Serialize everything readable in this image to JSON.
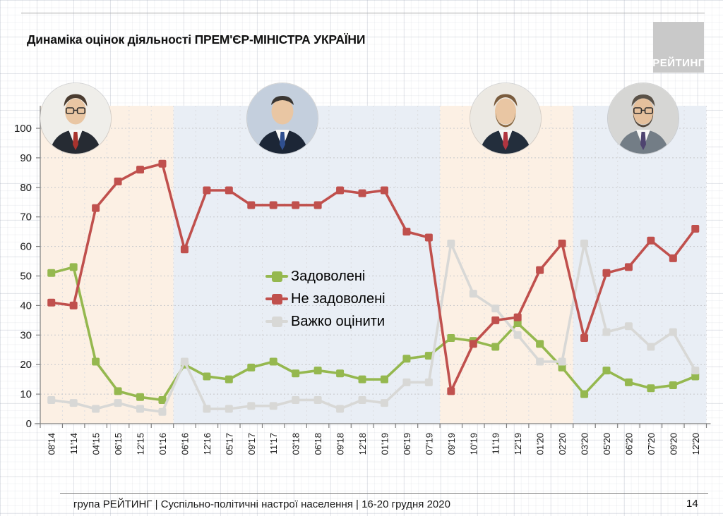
{
  "page": {
    "title": "Динаміка оцінок діяльності ПРЕМ'ЄР-МІНІСТРА УКРАЇНИ",
    "logo_text": "РЕЙТИНГ",
    "footer_text": "група РЕЙТИНГ | Суспільно-політичні настрої населення | 16-20 грудня 2020",
    "page_number": "14"
  },
  "chart_data": {
    "type": "line",
    "title": "Динаміка оцінок діяльності ПРЕМ'ЄР-МІНІСТРА УКРАЇНИ",
    "categories": [
      "08'14",
      "11'14",
      "04'15",
      "06'15",
      "12'15",
      "01'16",
      "06'16",
      "12'16",
      "05'17",
      "09'17",
      "11'17",
      "03'18",
      "06'18",
      "09'18",
      "12'18",
      "01'19",
      "06'19",
      "07'19",
      "09'19",
      "10'19",
      "11'19",
      "12'19",
      "01'20",
      "02'20",
      "03'20",
      "05'20",
      "06'20",
      "07'20",
      "09'20",
      "12'20"
    ],
    "series": [
      {
        "name": "Задоволені",
        "color": "#95b84f",
        "values": [
          51,
          53,
          21,
          11,
          9,
          8,
          20,
          16,
          15,
          19,
          21,
          17,
          18,
          17,
          15,
          15,
          22,
          23,
          29,
          28,
          26,
          34,
          27,
          19,
          10,
          18,
          14,
          12,
          13,
          16
        ]
      },
      {
        "name": "Не задоволені",
        "color": "#c0504d",
        "values": [
          41,
          40,
          73,
          82,
          86,
          88,
          59,
          79,
          79,
          74,
          74,
          74,
          74,
          79,
          78,
          79,
          65,
          63,
          11,
          27,
          35,
          36,
          52,
          61,
          29,
          51,
          53,
          62,
          56,
          66
        ]
      },
      {
        "name": "Важко оцінити",
        "color": "#d8d8d6",
        "values": [
          8,
          7,
          5,
          7,
          5,
          4,
          21,
          5,
          5,
          6,
          6,
          8,
          8,
          5,
          8,
          7,
          14,
          14,
          61,
          44,
          39,
          30,
          21,
          21,
          61,
          31,
          33,
          26,
          31,
          18
        ]
      }
    ],
    "ylim": [
      0,
      100
    ],
    "yticks": [
      0,
      10,
      20,
      30,
      40,
      50,
      60,
      70,
      80,
      90,
      100
    ],
    "grid": true,
    "legend_position": "inside-center-left",
    "bands": [
      {
        "start": 0,
        "end": 6,
        "color": "#fcf0e4"
      },
      {
        "start": 6,
        "end": 18,
        "color": "#e9eef5"
      },
      {
        "start": 18,
        "end": 24,
        "color": "#fcf0e4"
      },
      {
        "start": 24,
        "end": 30,
        "color": "#e9eef5"
      }
    ]
  }
}
